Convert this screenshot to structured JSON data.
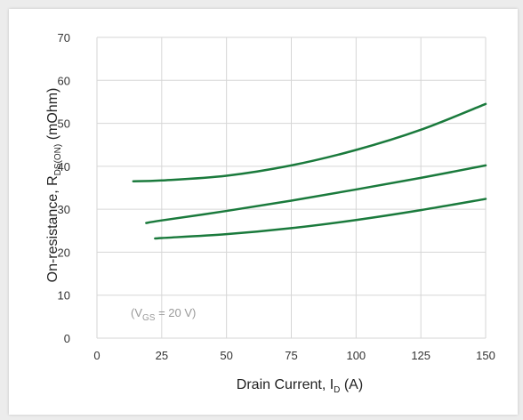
{
  "chart_data": {
    "type": "line",
    "xlabel": "Drain Current, I",
    "xlabel_sub": "D",
    "xlabel_unit": " (A)",
    "ylabel": "On-resistance, R",
    "ylabel_sub": "DS(ON)",
    "ylabel_unit": " (mOhm)",
    "xlim": [
      0,
      150
    ],
    "ylim": [
      0,
      70
    ],
    "xticks": [
      0,
      25,
      50,
      75,
      100,
      125,
      150
    ],
    "yticks": [
      0,
      10,
      20,
      30,
      40,
      50,
      60,
      70
    ],
    "grid": true,
    "annotation": {
      "prefix": "(V",
      "sub": "GS",
      "suffix": " = 20 V)"
    },
    "line_color": "#1a7a3c",
    "series": [
      {
        "x": [
          14,
          25,
          50,
          75,
          100,
          125,
          150
        ],
        "y": [
          36.5,
          36.7,
          37.8,
          40.2,
          43.8,
          48.5,
          54.5
        ]
      },
      {
        "x": [
          19,
          25,
          50,
          75,
          100,
          125,
          150
        ],
        "y": [
          26.8,
          27.4,
          29.6,
          32.0,
          34.6,
          37.3,
          40.2
        ]
      },
      {
        "x": [
          23,
          25,
          50,
          75,
          100,
          125,
          150
        ],
        "y": [
          23.2,
          23.3,
          24.2,
          25.6,
          27.5,
          29.8,
          32.4
        ]
      }
    ]
  }
}
